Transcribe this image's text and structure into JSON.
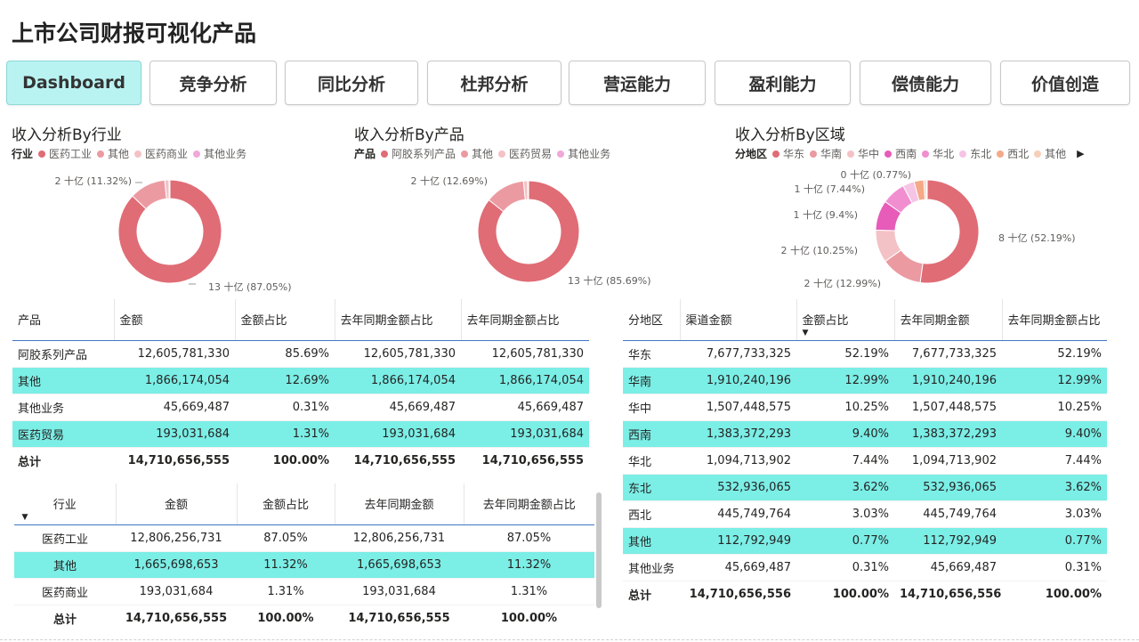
{
  "title": "上市公司财报可视化产品",
  "nav": [
    {
      "label": "Dashboard",
      "active": true
    },
    {
      "label": "竞争分析"
    },
    {
      "label": "同比分析"
    },
    {
      "label": "杜邦分析"
    },
    {
      "label": "营运能力"
    },
    {
      "label": "盈利能力"
    },
    {
      "label": "偿债能力"
    },
    {
      "label": "价值创造"
    }
  ],
  "charts": {
    "industry": {
      "title": "收入分析By行业",
      "legend_title": "行业",
      "legend": [
        "医药工业",
        "其他",
        "医药商业",
        "其他业务"
      ],
      "colors": [
        "#e06c75",
        "#eb9aa1",
        "#f3c2c6",
        "#f0a8d8"
      ],
      "label_a": "2 十亿 (11.32%)",
      "label_b": "13 十亿 (87.05%)"
    },
    "product": {
      "title": "收入分析By产品",
      "legend_title": "产品",
      "legend": [
        "阿胶系列产品",
        "其他",
        "医药贸易",
        "其他业务"
      ],
      "colors": [
        "#e06c75",
        "#eb9aa1",
        "#f3c2c6",
        "#f0a8d8"
      ],
      "label_a": "2 十亿 (12.69%)",
      "label_b": "13 十亿 (85.69%)"
    },
    "region": {
      "title": "收入分析By区域",
      "legend_title": "分地区",
      "legend": [
        "华东",
        "华南",
        "华中",
        "西南",
        "华北",
        "东北",
        "西北",
        "其他"
      ],
      "colors": [
        "#e06c75",
        "#eb9aa1",
        "#f3c2c6",
        "#e65cb8",
        "#f08ed0",
        "#f6c4e4",
        "#f4a988",
        "#f7cfb8"
      ],
      "labels": [
        "8 十亿 (52.19%)",
        "2 十亿 (12.99%)",
        "2 十亿 (10.25%)",
        "1 十亿 (9.4%)",
        "1 十亿 (7.44%)",
        "0 十亿 (0.77%)"
      ],
      "nav_arrow": "▶"
    }
  },
  "chart_data": [
    {
      "type": "pie",
      "title": "收入分析By行业",
      "categories": [
        "医药工业",
        "其他",
        "医药商业",
        "其他业务"
      ],
      "values": [
        87.05,
        11.32,
        1.31,
        0.32
      ]
    },
    {
      "type": "pie",
      "title": "收入分析By产品",
      "categories": [
        "阿胶系列产品",
        "其他",
        "医药贸易",
        "其他业务"
      ],
      "values": [
        85.69,
        12.69,
        1.31,
        0.31
      ]
    },
    {
      "type": "pie",
      "title": "收入分析By区域",
      "categories": [
        "华东",
        "华南",
        "华中",
        "西南",
        "华北",
        "东北",
        "西北",
        "其他",
        "其他业务"
      ],
      "values": [
        52.19,
        12.99,
        10.25,
        9.4,
        7.44,
        3.62,
        3.03,
        0.77,
        0.31
      ]
    }
  ],
  "product_table": {
    "headers": [
      "产品",
      "金额",
      "金额占比",
      "去年同期金额占比",
      "去年同期金额占比"
    ],
    "rows": [
      [
        "阿胶系列产品",
        "12,605,781,330",
        "85.69%",
        "12,605,781,330",
        "12,605,781,330"
      ],
      [
        "其他",
        "1,866,174,054",
        "12.69%",
        "1,866,174,054",
        "1,866,174,054"
      ],
      [
        "其他业务",
        "45,669,487",
        "0.31%",
        "45,669,487",
        "45,669,487"
      ],
      [
        "医药贸易",
        "193,031,684",
        "1.31%",
        "193,031,684",
        "193,031,684"
      ]
    ],
    "total": [
      "总计",
      "14,710,656,555",
      "100.00%",
      "14,710,656,555",
      "14,710,656,555"
    ]
  },
  "industry_table": {
    "headers": [
      "行业",
      "金额",
      "金额占比",
      "去年同期金额",
      "去年同期金额占比"
    ],
    "rows": [
      [
        "医药工业",
        "12,806,256,731",
        "87.05%",
        "12,806,256,731",
        "87.05%"
      ],
      [
        "其他",
        "1,665,698,653",
        "11.32%",
        "1,665,698,653",
        "11.32%"
      ],
      [
        "医药商业",
        "193,031,684",
        "1.31%",
        "193,031,684",
        "1.31%"
      ]
    ],
    "total": [
      "总计",
      "14,710,656,555",
      "100.00%",
      "14,710,656,555",
      "100.00%"
    ]
  },
  "region_table": {
    "headers": [
      "分地区",
      "渠道金额",
      "金额占比",
      "去年同期金额",
      "去年同期金额占比"
    ],
    "rows": [
      [
        "华东",
        "7,677,733,325",
        "52.19%",
        "7,677,733,325",
        "52.19%"
      ],
      [
        "华南",
        "1,910,240,196",
        "12.99%",
        "1,910,240,196",
        "12.99%"
      ],
      [
        "华中",
        "1,507,448,575",
        "10.25%",
        "1,507,448,575",
        "10.25%"
      ],
      [
        "西南",
        "1,383,372,293",
        "9.40%",
        "1,383,372,293",
        "9.40%"
      ],
      [
        "华北",
        "1,094,713,902",
        "7.44%",
        "1,094,713,902",
        "7.44%"
      ],
      [
        "东北",
        "532,936,065",
        "3.62%",
        "532,936,065",
        "3.62%"
      ],
      [
        "西北",
        "445,749,764",
        "3.03%",
        "445,749,764",
        "3.03%"
      ],
      [
        "其他",
        "112,792,949",
        "0.77%",
        "112,792,949",
        "0.77%"
      ],
      [
        "其他业务",
        "45,669,487",
        "0.31%",
        "45,669,487",
        "0.31%"
      ]
    ],
    "total": [
      "总计",
      "14,710,656,556",
      "100.00%",
      "14,710,656,556",
      "100.00%"
    ]
  },
  "sort_icon": "▼",
  "highlight_color": "#7beee6"
}
